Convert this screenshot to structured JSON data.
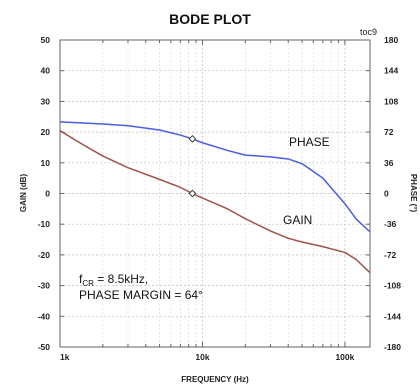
{
  "chart_data": {
    "type": "line",
    "title": "BODE PLOT",
    "tag": "toc9",
    "xlabel": "FREQUENCY (Hz)",
    "ylabel_left": "GAIN (dB)",
    "ylabel_right": "PHASE (°)",
    "x_scale": "log",
    "xlim": [
      1000,
      150000
    ],
    "ylim_left": [
      -50,
      50
    ],
    "ylim_right": [
      -180,
      180
    ],
    "x_ticks": [
      {
        "value": 1000,
        "label": "1k"
      },
      {
        "value": 10000,
        "label": "10k"
      },
      {
        "value": 100000,
        "label": "100k"
      }
    ],
    "y_ticks_left": [
      "50",
      "40",
      "30",
      "20",
      "10",
      "0",
      "-10",
      "-20",
      "-30",
      "-40",
      "-50"
    ],
    "y_ticks_right": [
      "180",
      "144",
      "108",
      "72",
      "36",
      "0",
      "-36",
      "-72",
      "-108",
      "-144",
      "-180"
    ],
    "grid": true,
    "series": [
      {
        "name": "GAIN",
        "axis": "left",
        "color": "#a0524a",
        "points": [
          [
            1000,
            20.5
          ],
          [
            1200,
            18.2
          ],
          [
            1500,
            15.5
          ],
          [
            2000,
            12.2
          ],
          [
            3000,
            8.4
          ],
          [
            5000,
            4.6
          ],
          [
            7000,
            2.0
          ],
          [
            8500,
            0.0
          ],
          [
            10000,
            -1.5
          ],
          [
            15000,
            -5.0
          ],
          [
            20000,
            -8.2
          ],
          [
            30000,
            -12.2
          ],
          [
            40000,
            -14.6
          ],
          [
            50000,
            -15.8
          ],
          [
            70000,
            -17.3
          ],
          [
            100000,
            -19.2
          ],
          [
            120000,
            -21.5
          ],
          [
            150000,
            -25.8
          ]
        ]
      },
      {
        "name": "PHASE",
        "axis": "right",
        "color": "#4b5ee0",
        "points": [
          [
            1000,
            84.0
          ],
          [
            1500,
            82.5
          ],
          [
            2000,
            81.5
          ],
          [
            3000,
            79.5
          ],
          [
            5000,
            74.5
          ],
          [
            7000,
            68.5
          ],
          [
            8500,
            64.0
          ],
          [
            10000,
            59.5
          ],
          [
            15000,
            50.5
          ],
          [
            20000,
            45.0
          ],
          [
            30000,
            43.0
          ],
          [
            40000,
            40.5
          ],
          [
            50000,
            35.0
          ],
          [
            70000,
            18.0
          ],
          [
            100000,
            -12.0
          ],
          [
            120000,
            -30.0
          ],
          [
            150000,
            -45.0
          ]
        ]
      }
    ],
    "markers": [
      {
        "series": "GAIN",
        "x": 8500,
        "y": 0.0
      },
      {
        "series": "PHASE",
        "x": 8500,
        "y": 64.0
      }
    ],
    "annotations": {
      "fcr_symbol": "f",
      "fcr_subscript": "CR",
      "fcr_value": " = 8.5kHz,",
      "phase_margin": "PHASE MARGIN = 64°"
    }
  }
}
